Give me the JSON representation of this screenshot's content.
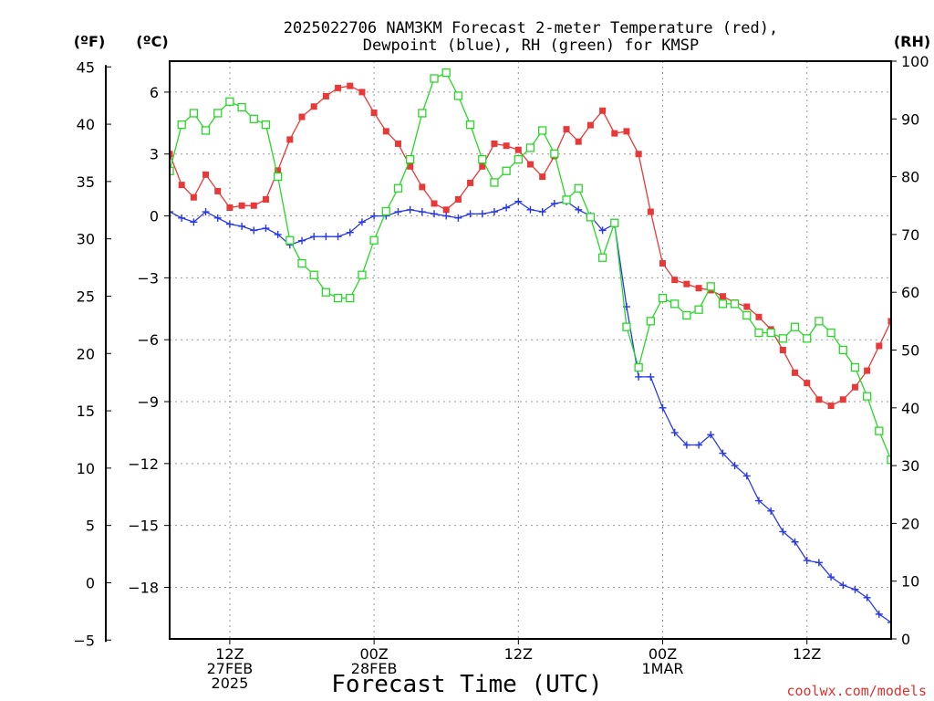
{
  "chart_data": {
    "type": "line",
    "title_lines": [
      "2025022706 NAM3KM Forecast 2-meter Temperature (red),",
      "Dewpoint (blue), RH (green) for KMSP"
    ],
    "xlabel": "Forecast Time (UTC)",
    "credit": "coolwx.com/models",
    "units": {
      "fahrenheit": "(ºF)",
      "celsius": "(ºC)",
      "rh": "(RH)"
    },
    "x_start_hour": 7,
    "x_step_hours": 1,
    "xlim_hours": [
      7,
      67
    ],
    "x_ticks": [
      {
        "hour": 12,
        "lines": [
          "12Z",
          "27FEB",
          "2025"
        ]
      },
      {
        "hour": 24,
        "lines": [
          "00Z",
          "28FEB"
        ]
      },
      {
        "hour": 36,
        "lines": [
          "12Z"
        ]
      },
      {
        "hour": 48,
        "lines": [
          "00Z",
          "1MAR"
        ]
      },
      {
        "hour": 60,
        "lines": [
          "12Z"
        ]
      }
    ],
    "celsius_axis": {
      "ylim": [
        -20.5,
        7.5
      ],
      "ticks": [
        "6",
        "3",
        "0",
        "−3",
        "−6",
        "−9",
        "−12",
        "−15",
        "−18"
      ],
      "tick_values": [
        6,
        3,
        0,
        -3,
        -6,
        -9,
        -12,
        -15,
        -18
      ]
    },
    "fahrenheit_axis": {
      "ticks": [
        "45",
        "40",
        "35",
        "30",
        "25",
        "20",
        "15",
        "10",
        "5",
        "0",
        "−5"
      ],
      "tick_values": [
        45,
        40,
        35,
        30,
        25,
        20,
        15,
        10,
        5,
        0,
        -5
      ]
    },
    "rh_axis": {
      "ylim": [
        0,
        100
      ],
      "ticks": [
        "100",
        "90",
        "80",
        "70",
        "60",
        "50",
        "40",
        "30",
        "20",
        "10",
        "0"
      ],
      "tick_values": [
        100,
        90,
        80,
        70,
        60,
        50,
        40,
        30,
        20,
        10,
        0
      ]
    },
    "grid": true,
    "series": [
      {
        "axis": "celsius",
        "marker": "filled-square",
        "color": "#e83838",
        "values": [
          3.0,
          1.5,
          0.9,
          2.0,
          1.2,
          0.4,
          0.5,
          0.5,
          0.8,
          2.2,
          3.7,
          4.8,
          5.3,
          5.8,
          6.2,
          6.3,
          6.0,
          5.0,
          4.1,
          3.5,
          2.4,
          1.4,
          0.6,
          0.3,
          0.8,
          1.6,
          2.4,
          3.5,
          3.4,
          3.2,
          2.5,
          1.9,
          2.9,
          4.2,
          3.6,
          4.4,
          5.1,
          4.0,
          4.1,
          3.0,
          0.2,
          -2.3,
          -3.1,
          -3.3,
          -3.5,
          -3.6,
          -3.9,
          -4.2,
          -4.4,
          -4.9,
          -5.5,
          -6.5,
          -7.6,
          -8.1,
          -8.9,
          -9.2,
          -8.9,
          -8.3,
          -7.5,
          -6.3,
          -5.1
        ]
      },
      {
        "axis": "celsius",
        "marker": "plus",
        "color": "#2838e8",
        "values": [
          0.2,
          -0.1,
          -0.3,
          0.2,
          -0.1,
          -0.4,
          -0.5,
          -0.7,
          -0.6,
          -0.9,
          -1.4,
          -1.2,
          -1.0,
          -1.0,
          -1.0,
          -0.8,
          -0.3,
          0.0,
          0.0,
          0.2,
          0.3,
          0.2,
          0.1,
          0.0,
          -0.1,
          0.1,
          0.1,
          0.2,
          0.4,
          0.7,
          0.3,
          0.2,
          0.6,
          0.7,
          0.3,
          0.0,
          -0.7,
          -0.4,
          -4.4,
          -7.8,
          -7.8,
          -9.3,
          -10.5,
          -11.1,
          -11.1,
          -10.6,
          -11.5,
          -12.1,
          -12.6,
          -13.8,
          -14.3,
          -15.3,
          -15.8,
          -16.7,
          -16.8,
          -17.5,
          -17.9,
          -18.1,
          -18.5,
          -19.3,
          -19.7
        ]
      },
      {
        "axis": "rh",
        "marker": "open-square",
        "color": "#28d828",
        "values": [
          81,
          89,
          91,
          88,
          91,
          93,
          92,
          90,
          89,
          80,
          69,
          65,
          63,
          60,
          59,
          59,
          63,
          69,
          74,
          78,
          83,
          91,
          97,
          98,
          94,
          89,
          83,
          79,
          81,
          83,
          85,
          88,
          84,
          76,
          78,
          73,
          66,
          72,
          54,
          47,
          55,
          59,
          58,
          56,
          57,
          61,
          58,
          58,
          56,
          53,
          53,
          52,
          54,
          52,
          55,
          53,
          50,
          47,
          42,
          36,
          31
        ]
      }
    ]
  }
}
